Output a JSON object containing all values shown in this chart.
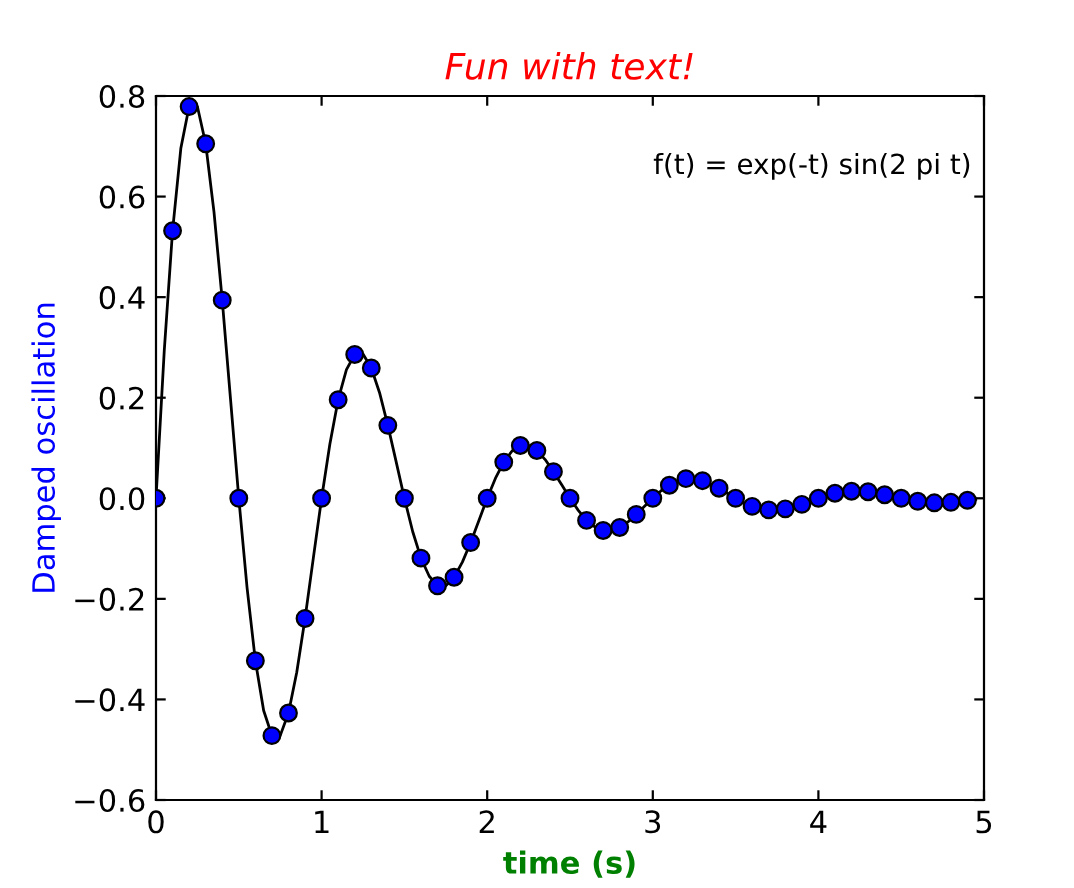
{
  "chart_data": {
    "type": "line",
    "title": "Fun with text!",
    "xlabel": "time (s)",
    "ylabel": "Damped oscillation",
    "annotations": [
      "f(t) = exp(-t) sin(2 pi t)"
    ],
    "series": [
      {
        "color": "#000000",
        "marker": "none",
        "line_style": "solid",
        "x": [
          0,
          0.05,
          0.1,
          0.15,
          0.2,
          0.25,
          0.3,
          0.35,
          0.4,
          0.45,
          0.5,
          0.55,
          0.6,
          0.65,
          0.7,
          0.75,
          0.8,
          0.85,
          0.9,
          0.95,
          1.0,
          1.05,
          1.1,
          1.15,
          1.2,
          1.25,
          1.3,
          1.35,
          1.4,
          1.45,
          1.5,
          1.55,
          1.6,
          1.65,
          1.7,
          1.75,
          1.8,
          1.85,
          1.9,
          1.95,
          2.0,
          2.05,
          2.1,
          2.15,
          2.2,
          2.25,
          2.3,
          2.35,
          2.4,
          2.45,
          2.5,
          2.55,
          2.6,
          2.65,
          2.7,
          2.75,
          2.8,
          2.85,
          2.9,
          2.95,
          3.0,
          3.05,
          3.1,
          3.15,
          3.2,
          3.25,
          3.3,
          3.35,
          3.4,
          3.45,
          3.5,
          3.55,
          3.6,
          3.65,
          3.7,
          3.75,
          3.8,
          3.85,
          3.9,
          3.95,
          4.0,
          4.05,
          4.1,
          4.15,
          4.2,
          4.25,
          4.3,
          4.35,
          4.4,
          4.45,
          4.5,
          4.55,
          4.6,
          4.65,
          4.7,
          4.75,
          4.8,
          4.85,
          4.9,
          4.95
        ],
        "values": [
          0,
          0.294,
          0.532,
          0.696,
          0.779,
          0.779,
          0.705,
          0.57,
          0.394,
          0.197,
          0,
          -0.178,
          -0.323,
          -0.422,
          -0.472,
          -0.472,
          -0.427,
          -0.346,
          -0.239,
          -0.119,
          0,
          0.108,
          0.196,
          0.256,
          0.286,
          0.287,
          0.259,
          0.21,
          0.145,
          0.073,
          0,
          -0.066,
          -0.119,
          -0.155,
          -0.174,
          -0.174,
          -0.157,
          -0.127,
          -0.088,
          -0.044,
          0,
          0.04,
          0.072,
          0.094,
          0.105,
          0.105,
          0.095,
          0.077,
          0.053,
          0.027,
          0,
          -0.024,
          -0.044,
          -0.057,
          -0.064,
          -0.064,
          -0.058,
          -0.047,
          -0.032,
          -0.016,
          0,
          0.015,
          0.026,
          0.035,
          0.039,
          0.039,
          0.035,
          0.028,
          0.02,
          0.01,
          0,
          -0.009,
          -0.016,
          -0.021,
          -0.023,
          -0.024,
          -0.021,
          -0.017,
          -0.012,
          -0.006,
          0,
          0.005,
          0.01,
          0.013,
          0.014,
          0.014,
          0.013,
          0.01,
          0.007,
          0.004,
          0,
          -0.003,
          -0.006,
          -0.008,
          -0.009,
          -0.009,
          -0.008,
          -0.006,
          -0.004,
          -0.002
        ]
      },
      {
        "type": "scatter",
        "color": "#0000ff",
        "marker": "circle",
        "x": [
          0,
          0.1,
          0.2,
          0.3,
          0.4,
          0.5,
          0.6,
          0.7,
          0.8,
          0.9,
          1.0,
          1.1,
          1.2,
          1.3,
          1.4,
          1.5,
          1.6,
          1.7,
          1.8,
          1.9,
          2.0,
          2.1,
          2.2,
          2.3,
          2.4,
          2.5,
          2.6,
          2.7,
          2.8,
          2.9,
          3.0,
          3.1,
          3.2,
          3.3,
          3.4,
          3.5,
          3.6,
          3.7,
          3.8,
          3.9,
          4.0,
          4.1,
          4.2,
          4.3,
          4.4,
          4.5,
          4.6,
          4.7,
          4.8,
          4.9
        ],
        "values": [
          0,
          0.532,
          0.779,
          0.705,
          0.394,
          0,
          -0.323,
          -0.472,
          -0.427,
          -0.239,
          0,
          0.196,
          0.286,
          0.259,
          0.145,
          0,
          -0.119,
          -0.174,
          -0.157,
          -0.088,
          0,
          0.072,
          0.105,
          0.095,
          0.053,
          0,
          -0.044,
          -0.064,
          -0.058,
          -0.032,
          0,
          0.026,
          0.039,
          0.035,
          0.02,
          0,
          -0.016,
          -0.023,
          -0.021,
          -0.012,
          0,
          0.01,
          0.014,
          0.013,
          0.007,
          0,
          -0.006,
          -0.009,
          -0.008,
          -0.004
        ]
      }
    ],
    "xlim": [
      0,
      5
    ],
    "ylim": [
      -0.6,
      0.8
    ],
    "xticks": [
      0,
      1,
      2,
      3,
      4,
      5
    ],
    "yticks": [
      {
        "value": -0.6,
        "label": "−0.6"
      },
      {
        "value": -0.4,
        "label": "−0.4"
      },
      {
        "value": -0.2,
        "label": "−0.2"
      },
      {
        "value": 0,
        "label": "0.0"
      },
      0.2,
      0.4,
      0.6,
      0.8
    ],
    "grid": false,
    "legend": false
  }
}
